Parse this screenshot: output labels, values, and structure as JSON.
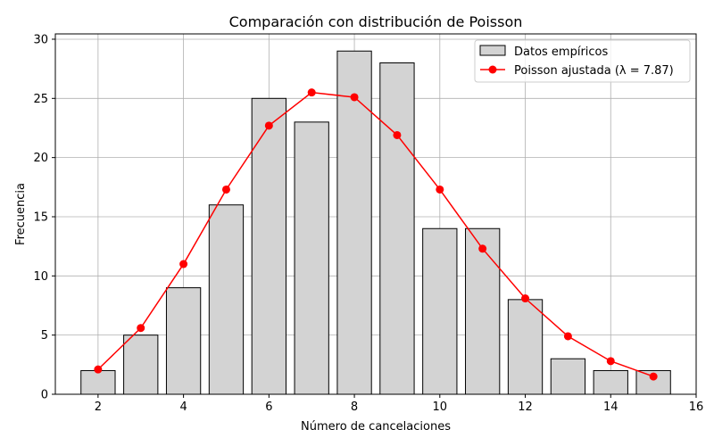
{
  "chart_data": {
    "type": "bar",
    "title": "Comparación con distribución de Poisson",
    "xlabel": "Número de cancelaciones",
    "ylabel": "Frecuencia",
    "xlim": [
      1,
      16
    ],
    "ylim": [
      0,
      30.45
    ],
    "xticks": [
      2,
      4,
      6,
      8,
      10,
      12,
      14,
      16
    ],
    "yticks": [
      0,
      5,
      10,
      15,
      20,
      25,
      30
    ],
    "grid": true,
    "legend_position": "top-right",
    "series": [
      {
        "name": "Datos empíricos",
        "type": "bar",
        "color": "#d3d3d3",
        "edge_color": "#000000",
        "x": [
          2,
          3,
          4,
          5,
          6,
          7,
          8,
          9,
          10,
          11,
          12,
          13,
          14,
          15
        ],
        "values": [
          2,
          5,
          9,
          16,
          25,
          23,
          29,
          28,
          14,
          14,
          8,
          3,
          2,
          2
        ]
      },
      {
        "name": "Poisson ajustada (λ = 7.87)",
        "type": "line",
        "color": "#ff0000",
        "x": [
          2,
          3,
          4,
          5,
          6,
          7,
          8,
          9,
          10,
          11,
          12,
          13,
          14,
          15
        ],
        "values": [
          2.1,
          5.6,
          11.0,
          17.3,
          22.7,
          25.5,
          25.1,
          21.9,
          17.3,
          12.3,
          8.1,
          4.9,
          2.8,
          1.5
        ]
      }
    ]
  }
}
